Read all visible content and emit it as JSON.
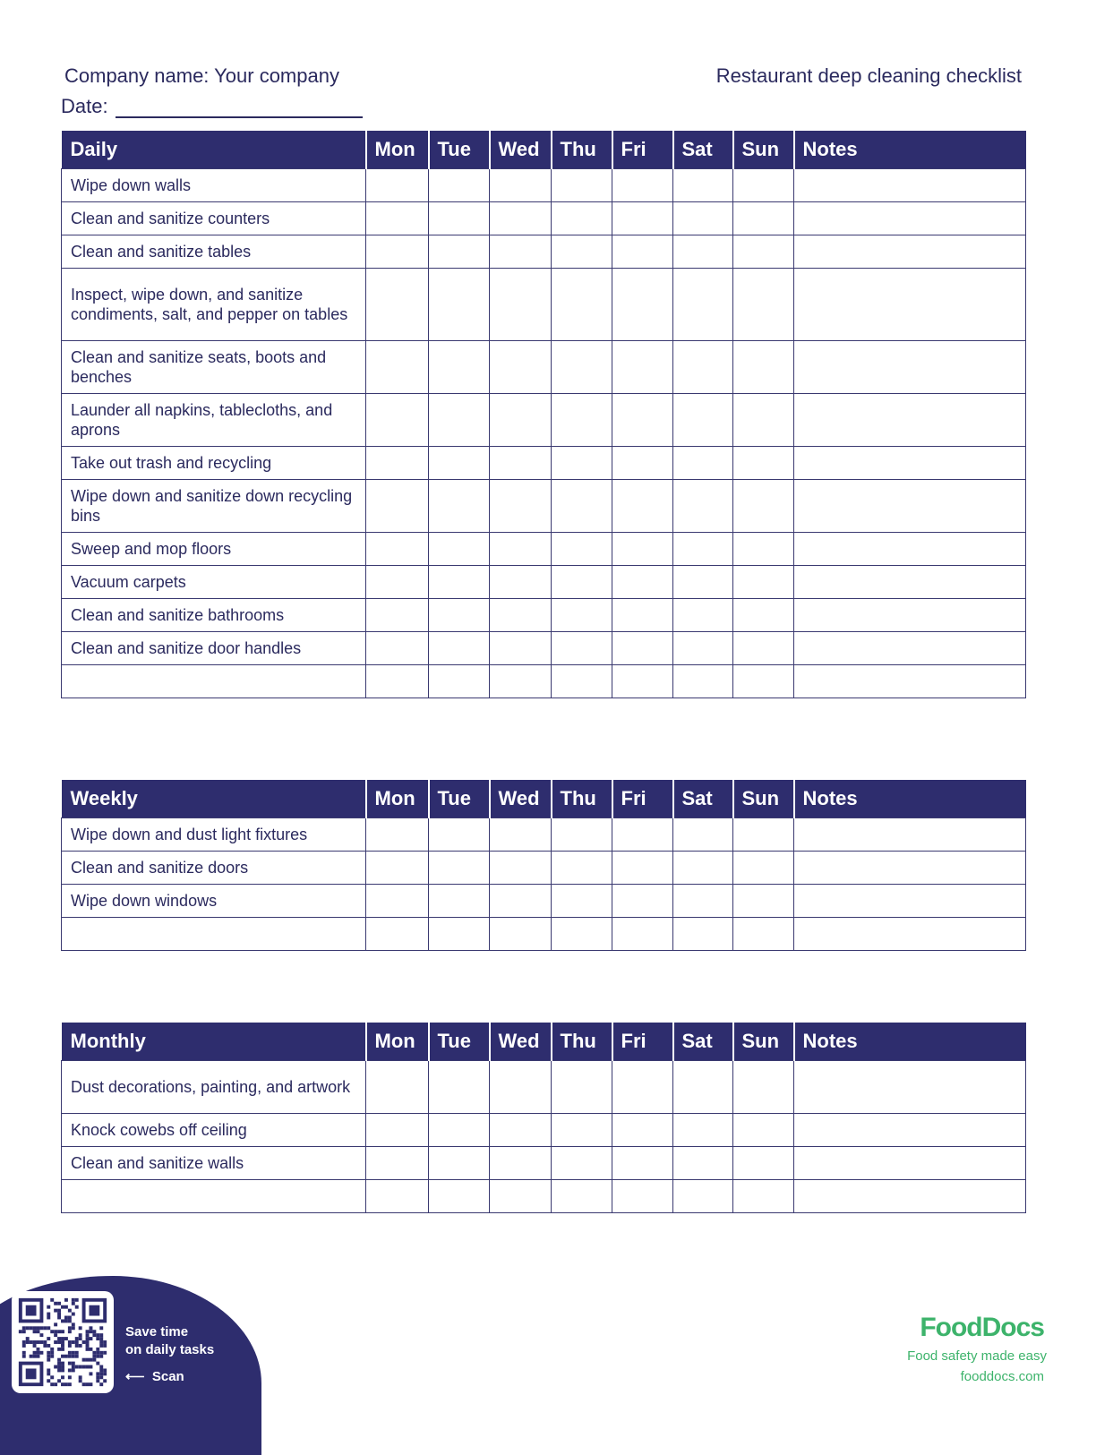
{
  "header": {
    "company": "Company name: Your company",
    "date_label": "Date:",
    "title": "Restaurant deep cleaning checklist"
  },
  "day_columns": [
    "Mon",
    "Tue",
    "Wed",
    "Thu",
    "Fri",
    "Sat",
    "Sun",
    "Notes"
  ],
  "sections": [
    {
      "title": "Daily",
      "tasks": [
        {
          "label": "Wipe down walls",
          "lines": 1
        },
        {
          "label": "Clean and sanitize counters",
          "lines": 1
        },
        {
          "label": "Clean and sanitize tables",
          "lines": 1
        },
        {
          "label": "Inspect, wipe down, and sanitize condiments, salt, and pepper on tables",
          "lines": 3
        },
        {
          "label": "Clean and sanitize seats, boots and benches",
          "lines": 2
        },
        {
          "label": "Launder all napkins, tablecloths, and aprons",
          "lines": 2
        },
        {
          "label": "Take out trash and recycling",
          "lines": 1
        },
        {
          "label": "Wipe down and sanitize down recycling bins",
          "lines": 2
        },
        {
          "label": "Sweep and mop floors",
          "lines": 1
        },
        {
          "label": "Vacuum carpets",
          "lines": 1
        },
        {
          "label": "Clean and sanitize bathrooms",
          "lines": 1
        },
        {
          "label": "Clean and sanitize door handles",
          "lines": 1
        },
        {
          "label": "",
          "lines": 1
        }
      ]
    },
    {
      "title": "Weekly",
      "tasks": [
        {
          "label": "Wipe down and dust light fixtures",
          "lines": 1
        },
        {
          "label": "Clean and sanitize doors",
          "lines": 1
        },
        {
          "label": "Wipe down windows",
          "lines": 1
        },
        {
          "label": "",
          "lines": 1
        }
      ]
    },
    {
      "title": "Monthly",
      "tasks": [
        {
          "label": "Dust decorations, painting, and artwork",
          "lines": 2
        },
        {
          "label": "Knock cowebs off ceiling",
          "lines": 1
        },
        {
          "label": "Clean and sanitize walls",
          "lines": 1
        },
        {
          "label": "",
          "lines": 1
        }
      ]
    }
  ],
  "footer": {
    "qr_line1": "Save time",
    "qr_line2": "on daily tasks",
    "scan": "Scan",
    "logo": "FoodDocs",
    "tagline": "Food safety made easy",
    "website": "fooddocs.com",
    "brand_color": "#3db36b",
    "header_color": "#2e2d6e"
  }
}
